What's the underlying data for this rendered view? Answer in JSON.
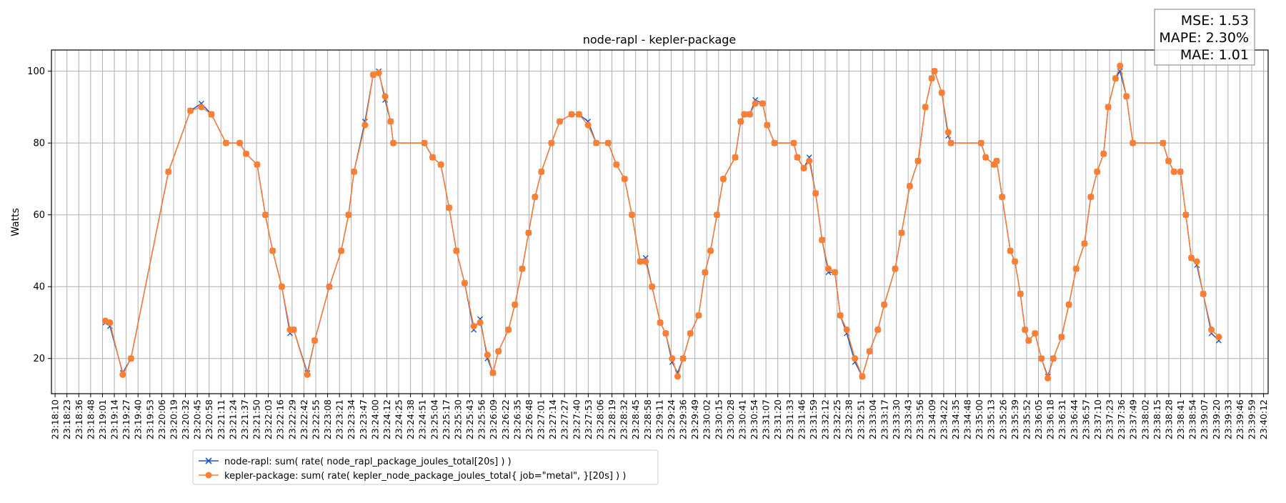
{
  "chart_data": {
    "type": "line",
    "title": "node-rapl - kepler-package",
    "xlabel": "",
    "ylabel": "Watts",
    "x_unit": "seconds since 23:18:10",
    "xlim": [
      -4,
      1327
    ],
    "ylim": [
      10.2,
      105.9
    ],
    "grid": true,
    "yticks": [
      20,
      40,
      60,
      80,
      100
    ],
    "xtick_labels": [
      "23:18:10",
      "23:18:23",
      "23:18:36",
      "23:18:48",
      "23:19:01",
      "23:19:14",
      "23:19:27",
      "23:19:40",
      "23:19:53",
      "23:20:06",
      "23:20:19",
      "23:20:32",
      "23:20:45",
      "23:20:58",
      "23:21:11",
      "23:21:24",
      "23:21:37",
      "23:21:50",
      "23:22:03",
      "23:22:16",
      "23:22:29",
      "23:22:42",
      "23:22:55",
      "23:23:08",
      "23:23:21",
      "23:23:34",
      "23:23:47",
      "23:24:00",
      "23:24:12",
      "23:24:25",
      "23:24:38",
      "23:24:51",
      "23:25:04",
      "23:25:17",
      "23:25:30",
      "23:25:43",
      "23:25:56",
      "23:26:09",
      "23:26:22",
      "23:26:35",
      "23:26:48",
      "23:27:01",
      "23:27:14",
      "23:27:27",
      "23:27:40",
      "23:27:53",
      "23:28:06",
      "23:28:19",
      "23:28:32",
      "23:28:45",
      "23:28:58",
      "23:29:11",
      "23:29:24",
      "23:29:36",
      "23:29:49",
      "23:30:02",
      "23:30:15",
      "23:30:28",
      "23:30:41",
      "23:30:54",
      "23:31:07",
      "23:31:20",
      "23:31:33",
      "23:31:46",
      "23:31:59",
      "23:32:12",
      "23:32:25",
      "23:32:38",
      "23:32:51",
      "23:33:04",
      "23:33:17",
      "23:33:30",
      "23:33:43",
      "23:33:56",
      "23:34:09",
      "23:34:22",
      "23:34:35",
      "23:34:48",
      "23:35:00",
      "23:35:13",
      "23:35:26",
      "23:35:39",
      "23:35:52",
      "23:36:05",
      "23:36:18",
      "23:36:31",
      "23:36:44",
      "23:36:57",
      "23:37:10",
      "23:37:23",
      "23:37:36",
      "23:37:49",
      "23:38:02",
      "23:38:15",
      "23:38:28",
      "23:38:41",
      "23:38:54",
      "23:39:07",
      "23:39:20",
      "23:39:33",
      "23:39:46",
      "23:39:59",
      "23:40:12"
    ],
    "x": [
      55,
      60,
      74,
      83,
      124,
      148,
      160,
      171,
      187,
      202,
      209,
      221,
      230,
      238,
      248,
      257,
      261,
      276,
      284,
      300,
      313,
      321,
      327,
      339,
      348,
      354,
      361,
      367,
      370,
      404,
      413,
      422,
      431,
      439,
      448,
      458,
      465,
      473,
      479,
      485,
      496,
      503,
      511,
      518,
      525,
      532,
      543,
      552,
      565,
      573,
      583,
      592,
      605,
      614,
      623,
      631,
      640,
      646,
      653,
      662,
      668,
      675,
      681,
      687,
      695,
      704,
      711,
      717,
      724,
      731,
      744,
      750,
      754,
      760,
      766,
      774,
      779,
      787,
      808,
      812,
      819,
      825,
      832,
      839,
      846,
      853,
      859,
      866,
      875,
      883,
      891,
      900,
      907,
      919,
      926,
      935,
      944,
      952,
      959,
      962,
      970,
      977,
      980,
      1013,
      1018,
      1027,
      1030,
      1036,
      1045,
      1050,
      1056,
      1061,
      1065,
      1072,
      1079,
      1086,
      1092,
      1101,
      1109,
      1117,
      1126,
      1133,
      1140,
      1147,
      1152,
      1160,
      1165,
      1172,
      1179,
      1212,
      1218,
      1224,
      1231,
      1237,
      1243,
      1249,
      1256,
      1265,
      1273
    ],
    "series": [
      {
        "name": "node-rapl: sum( rate( node_rapl_package_joules_total[20s] ) )",
        "color": "#1a56c8",
        "marker": "x",
        "values": [
          30,
          29,
          16,
          20,
          72,
          89,
          91,
          88,
          80,
          80,
          77,
          74,
          60,
          50,
          40,
          27,
          28,
          16,
          25,
          40,
          50,
          60,
          72,
          86,
          99,
          100,
          92,
          86,
          80,
          80,
          76,
          74,
          62,
          50,
          41,
          28,
          31,
          20,
          16,
          22,
          28,
          35,
          45,
          55,
          65,
          72,
          80,
          86,
          88,
          88,
          86,
          80,
          80,
          74,
          70,
          60,
          47,
          48,
          40,
          30,
          27,
          19,
          16,
          20,
          27,
          32,
          44,
          50,
          60,
          70,
          76,
          86,
          88,
          88,
          92,
          91,
          85,
          80,
          80,
          76,
          73,
          76,
          66,
          53,
          44,
          44,
          32,
          27,
          19,
          15,
          22,
          28,
          35,
          45,
          55,
          68,
          75,
          90,
          98,
          100,
          94,
          82,
          80,
          80,
          76,
          74,
          75,
          65,
          50,
          47,
          38,
          28,
          25,
          27,
          20,
          15,
          20,
          26,
          35,
          45,
          52,
          65,
          72,
          77,
          90,
          98,
          100,
          93,
          80,
          80,
          75,
          72,
          72,
          60,
          48,
          46,
          38,
          27,
          25
        ]
      },
      {
        "name": "kepler-package: sum( rate( kepler_node_package_joules_total{ job=\"metal\", }[20s] ) )",
        "color": "#ff7f32",
        "marker": "o",
        "values": [
          30.5,
          30,
          15.5,
          20,
          72,
          89,
          90,
          88,
          80,
          80,
          77,
          74,
          60,
          50,
          40,
          28,
          28,
          15.5,
          25,
          40,
          50,
          60,
          72,
          85,
          99,
          99.5,
          93,
          86,
          80,
          80,
          76,
          74,
          62,
          50,
          41,
          29,
          30,
          21,
          16,
          22,
          28,
          35,
          45,
          55,
          65,
          72,
          80,
          86,
          88,
          88,
          85,
          80,
          80,
          74,
          70,
          60,
          47,
          47,
          40,
          30,
          27,
          20,
          15,
          20,
          27,
          32,
          44,
          50,
          60,
          70,
          76,
          86,
          88,
          88,
          91,
          91,
          85,
          80,
          80,
          76,
          73,
          75,
          66,
          53,
          45,
          44,
          32,
          28,
          20,
          15,
          22,
          28,
          35,
          45,
          55,
          68,
          75,
          90,
          98,
          100,
          94,
          83,
          80,
          80,
          76,
          74,
          75,
          65,
          50,
          47,
          38,
          28,
          25,
          27,
          20,
          14.5,
          20,
          26,
          35,
          45,
          52,
          65,
          72,
          77,
          90,
          98,
          101.5,
          93,
          80,
          80,
          75,
          72,
          72,
          60,
          48,
          47,
          38,
          28,
          26
        ]
      }
    ],
    "legend_placement": "bottom-left (below axes)",
    "annotation": {
      "mse": "MSE: 1.53",
      "mape": "MAPE: 2.30%",
      "mae": "MAE: 1.01"
    }
  }
}
